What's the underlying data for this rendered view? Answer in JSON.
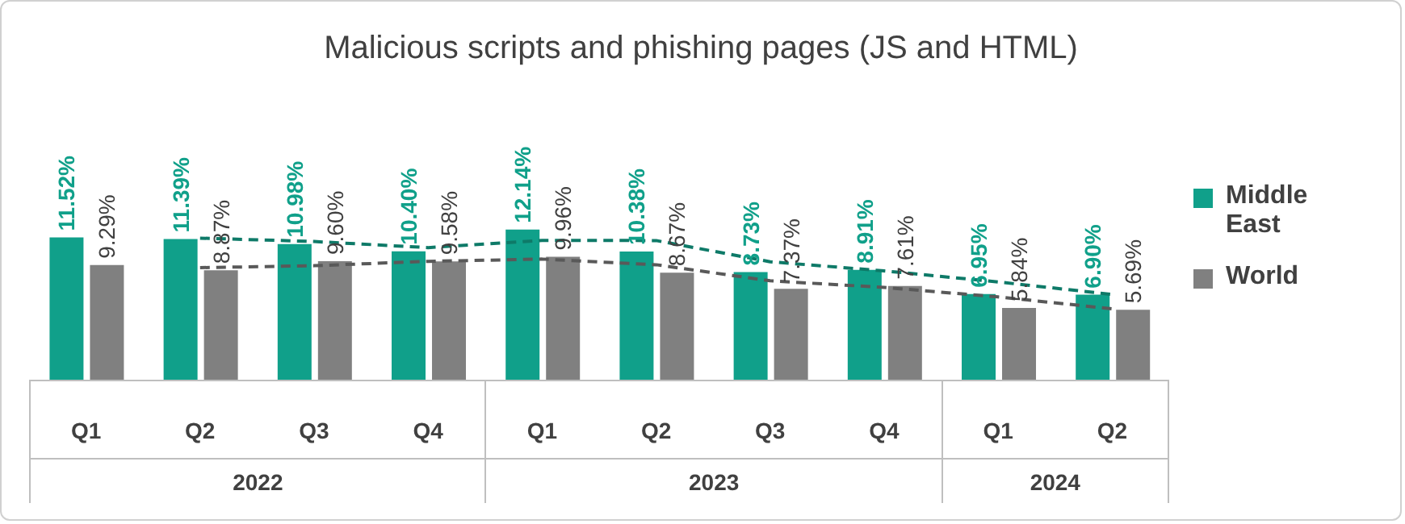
{
  "chart_data": {
    "type": "bar",
    "title": "Malicious scripts and phishing pages (JS and HTML)",
    "categories": [
      "Q1",
      "Q2",
      "Q3",
      "Q4",
      "Q1",
      "Q2",
      "Q3",
      "Q4",
      "Q1",
      "Q2"
    ],
    "annotations": [
      "2022",
      "2023",
      "2024"
    ],
    "legend": "right",
    "series": [
      {
        "name": "Middle East",
        "color": "#10a08a",
        "values": [
          11.52,
          11.39,
          10.98,
          10.4,
          12.14,
          10.38,
          8.73,
          8.91,
          6.95,
          6.9
        ],
        "value_labels": [
          "11.52%",
          "11.39%",
          "10.98%",
          "10.40%",
          "12.14%",
          "10.38%",
          "8.73%",
          "8.91%",
          "6.95%",
          "6.90%"
        ]
      },
      {
        "name": "World",
        "color": "#808080",
        "values": [
          9.29,
          8.87,
          9.6,
          9.58,
          9.96,
          8.67,
          7.37,
          7.61,
          5.84,
          5.69
        ],
        "value_labels": [
          "9.29%",
          "8.87%",
          "9.60%",
          "9.58%",
          "9.96%",
          "8.67%",
          "7.37%",
          "7.61%",
          "5.84%",
          "5.69%"
        ]
      },
      {
        "type": "line",
        "color": "#0e7a68",
        "line_style": "dashed",
        "values": [
          null,
          11.455,
          11.185,
          10.69,
          11.27,
          11.26,
          9.555,
          8.82,
          7.93,
          6.925
        ]
      },
      {
        "type": "line",
        "color": "#595959",
        "line_style": "dashed",
        "values": [
          null,
          9.08,
          9.235,
          9.59,
          9.77,
          9.315,
          8.02,
          7.49,
          6.725,
          5.765
        ]
      }
    ]
  }
}
